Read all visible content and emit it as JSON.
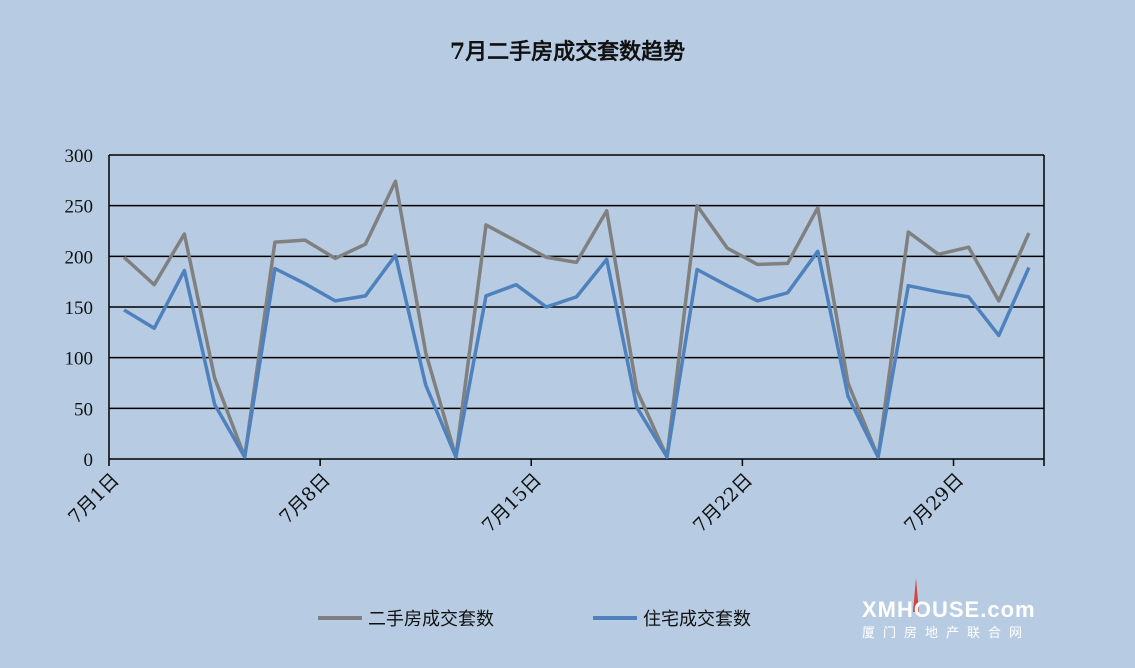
{
  "chart_data": {
    "type": "line",
    "title": "7月二手房成交套数趋势",
    "xlabel": "",
    "ylabel": "",
    "ylim": [
      0,
      300
    ],
    "yticks": [
      0,
      50,
      100,
      150,
      200,
      250,
      300
    ],
    "x": [
      "7月1日",
      "7月2日",
      "7月3日",
      "7月4日",
      "7月5日",
      "7月6日",
      "7月7日",
      "7月8日",
      "7月9日",
      "7月10日",
      "7月11日",
      "7月12日",
      "7月13日",
      "7月14日",
      "7月15日",
      "7月16日",
      "7月17日",
      "7月18日",
      "7月19日",
      "7月20日",
      "7月21日",
      "7月22日",
      "7月23日",
      "7月24日",
      "7月25日",
      "7月26日",
      "7月27日",
      "7月28日",
      "7月29日",
      "7月30日",
      "7月31日"
    ],
    "xtick_labels": [
      "7月1日",
      "7月8日",
      "7月15日",
      "7月22日",
      "7月29日"
    ],
    "series": [
      {
        "name": "二手房成交套数",
        "color": "#808080",
        "values": [
          199,
          172,
          222,
          80,
          2,
          214,
          216,
          198,
          212,
          274,
          105,
          2,
          231,
          215,
          199,
          194,
          245,
          68,
          2,
          250,
          208,
          192,
          193,
          248,
          75,
          2,
          224,
          202,
          209,
          156,
          223
        ]
      },
      {
        "name": "住宅成交套数",
        "color": "#4f81bd",
        "values": [
          147,
          129,
          186,
          54,
          2,
          188,
          173,
          156,
          161,
          201,
          73,
          2,
          161,
          172,
          150,
          160,
          197,
          51,
          2,
          187,
          171,
          156,
          164,
          205,
          62,
          2,
          171,
          165,
          160,
          122,
          189
        ]
      }
    ],
    "grid": true,
    "legend_position": "bottom"
  },
  "watermark": {
    "main": "XMHOUSE.com",
    "sub": "厦门房地产联合网"
  }
}
